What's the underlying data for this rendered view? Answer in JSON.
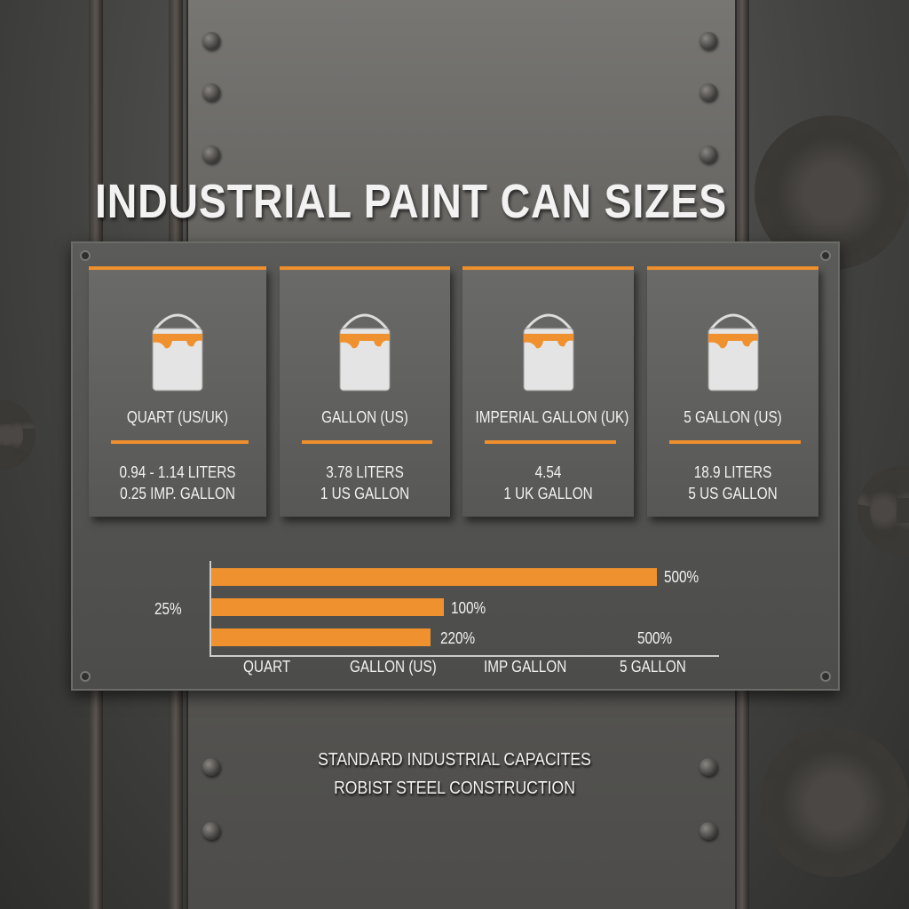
{
  "title": "INDUSTRIAL PAINT CAN SIZES",
  "accent_color": "#ee8f2e",
  "cards": [
    {
      "name": "QUART (US/UK)",
      "line1": "0.94 - 1.14 LITERS",
      "line2": "0.25 IMP. GALLON",
      "icon": "paint-can-icon"
    },
    {
      "name": "GALLON (US)",
      "line1": "3.78 LITERS",
      "line2": "1 US GALLON",
      "icon": "paint-can-icon"
    },
    {
      "name": "IMPERIAL GALLON (UK)",
      "line1": "4.54",
      "line2": "1 UK GALLON",
      "icon": "paint-can-icon"
    },
    {
      "name": "5 GALLON (US)",
      "line1": "18.9 LITERS",
      "line2": "5 US GALLON",
      "icon": "paint-can-icon"
    }
  ],
  "chart": {
    "type": "bar",
    "bar_labels": [
      "500%",
      "100%",
      "220%"
    ],
    "y_label": "25%",
    "extra_label": "500%",
    "categories": [
      "QUART",
      "GALLON (US)",
      "IMP GALLON",
      "5 GALLON"
    ]
  },
  "footer": {
    "line1": "STANDARD INDUSTRIAL CAPACITES",
    "line2": "ROBIST STEEL CONSTRUCTION"
  }
}
